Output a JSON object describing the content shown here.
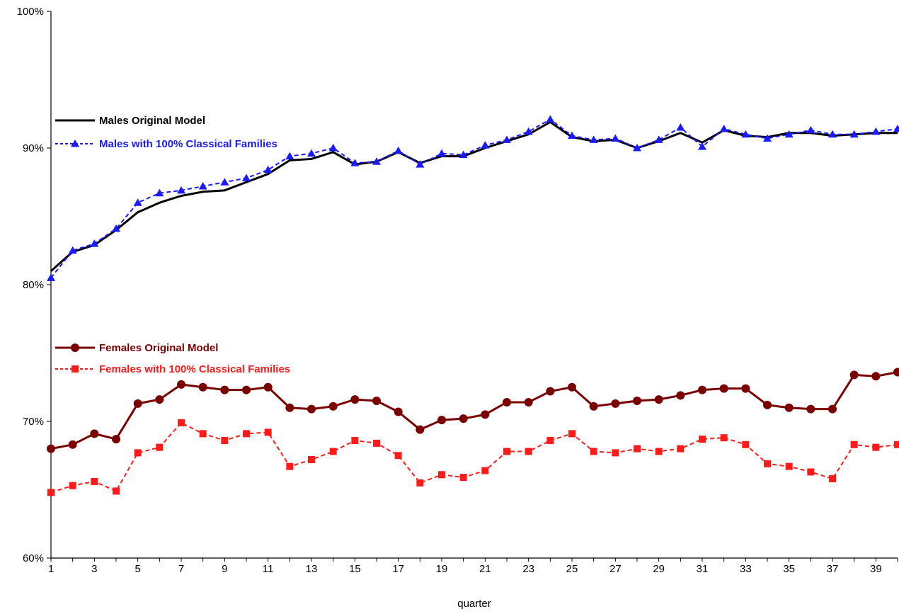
{
  "chart_data": {
    "type": "line",
    "title": "",
    "xlabel": "quarter",
    "ylabel": "",
    "x": [
      1,
      2,
      3,
      4,
      5,
      6,
      7,
      8,
      9,
      10,
      11,
      12,
      13,
      14,
      15,
      16,
      17,
      18,
      19,
      20,
      21,
      22,
      23,
      24,
      25,
      26,
      27,
      28,
      29,
      30,
      31,
      32,
      33,
      34,
      35,
      36,
      37,
      38,
      39,
      40
    ],
    "x_tick_labels": [
      "1",
      "3",
      "5",
      "7",
      "9",
      "11",
      "13",
      "15",
      "17",
      "19",
      "21",
      "23",
      "25",
      "27",
      "29",
      "31",
      "33",
      "35",
      "37",
      "39"
    ],
    "y_tick_labels": [
      "60%",
      "70%",
      "80%",
      "90%",
      "100%"
    ],
    "xlim": [
      1,
      40
    ],
    "ylim": [
      60,
      100
    ],
    "grid": false,
    "legend_position": "inside-left",
    "series": [
      {
        "name": "Males  Original Model",
        "color": "#000000",
        "line_style": "solid",
        "marker": "none",
        "values": [
          81.0,
          82.4,
          82.9,
          84.0,
          85.3,
          86.0,
          86.5,
          86.8,
          86.9,
          87.5,
          88.1,
          89.1,
          89.2,
          89.7,
          88.8,
          89.0,
          89.7,
          88.9,
          89.4,
          89.4,
          90.0,
          90.5,
          91.0,
          91.9,
          90.8,
          90.5,
          90.6,
          90.0,
          90.5,
          91.1,
          90.4,
          91.3,
          90.9,
          90.8,
          91.1,
          91.1,
          90.9,
          91.0,
          91.1,
          91.1
        ]
      },
      {
        "name": "Males with 100% Classical Families",
        "color": "#1a1aff",
        "line_style": "dashed",
        "marker": "triangle",
        "values": [
          80.5,
          82.5,
          83.0,
          84.1,
          86.0,
          86.7,
          86.9,
          87.2,
          87.5,
          87.8,
          88.4,
          89.4,
          89.6,
          90.0,
          88.9,
          89.0,
          89.8,
          88.8,
          89.6,
          89.5,
          90.2,
          90.6,
          91.2,
          92.1,
          90.9,
          90.6,
          90.7,
          90.0,
          90.6,
          91.5,
          90.1,
          91.4,
          91.0,
          90.7,
          91.0,
          91.3,
          91.0,
          91.0,
          91.2,
          91.4
        ]
      },
      {
        "name": "Females  Original Model",
        "color": "#7a0000",
        "line_style": "solid",
        "marker": "circle",
        "values": [
          68.0,
          68.3,
          69.1,
          68.7,
          71.3,
          71.6,
          72.7,
          72.5,
          72.3,
          72.3,
          72.5,
          71.0,
          70.9,
          71.1,
          71.6,
          71.5,
          70.7,
          69.4,
          70.1,
          70.2,
          70.5,
          71.4,
          71.4,
          72.2,
          72.5,
          71.1,
          71.3,
          71.5,
          71.6,
          71.9,
          72.3,
          72.4,
          72.4,
          71.2,
          71.0,
          70.9,
          70.9,
          73.4,
          73.3,
          73.6
        ]
      },
      {
        "name": "Females with 100% Classical Families",
        "color": "#ff1a1a",
        "line_style": "dashed",
        "marker": "square",
        "values": [
          64.8,
          65.3,
          65.6,
          64.9,
          67.7,
          68.1,
          69.9,
          69.1,
          68.6,
          69.1,
          69.2,
          66.7,
          67.2,
          67.8,
          68.6,
          68.4,
          67.5,
          65.5,
          66.1,
          65.9,
          66.4,
          67.8,
          67.8,
          68.6,
          69.1,
          67.8,
          67.7,
          68.0,
          67.8,
          68.0,
          68.7,
          68.8,
          68.3,
          66.9,
          66.7,
          66.3,
          65.8,
          68.3,
          68.1,
          68.3
        ]
      }
    ]
  }
}
